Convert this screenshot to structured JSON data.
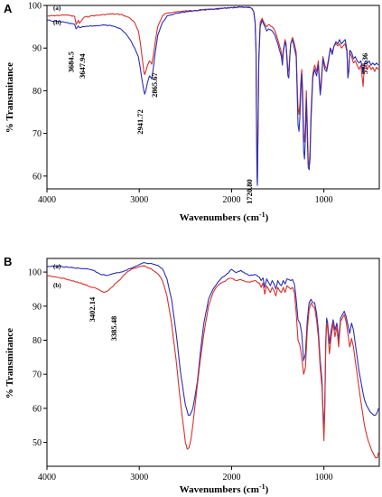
{
  "chart_data": [
    {
      "type": "line",
      "panel": "A",
      "xlabel": "Wavenumbers (cm",
      "xlabel_sup": "-1",
      "xlabel_close": ")",
      "ylabel": "% Transmitance",
      "xlim": [
        4000,
        400
      ],
      "ylim": [
        57,
        100
      ],
      "xticks": [
        4000,
        3000,
        2000,
        1000
      ],
      "yticks": [
        60,
        70,
        80,
        90,
        100
      ],
      "legend_labels": [
        "(a)",
        "(b)"
      ],
      "colors": {
        "a": "#d8312c",
        "b": "#2b2fb8"
      },
      "annotations": [
        {
          "text": "3684.5",
          "x": 3684.5,
          "y": 93
        },
        {
          "text": "3647.94",
          "x": 3647.94,
          "y": 92.5
        },
        {
          "text": "2941.72",
          "x": 2941.72,
          "y": 79
        },
        {
          "text": "2865.67",
          "x": 2865.67,
          "y": 83
        },
        {
          "text": "1720.80",
          "x": 1720.8,
          "y": 58
        },
        {
          "text": "575.36",
          "x": 575.36,
          "y": 85
        }
      ],
      "series": [
        {
          "key": "a",
          "x": [
            4000,
            3900,
            3800,
            3700,
            3684,
            3660,
            3648,
            3600,
            3500,
            3400,
            3300,
            3200,
            3150,
            3100,
            3050,
            3010,
            2990,
            2970,
            2950,
            2942,
            2930,
            2910,
            2890,
            2870,
            2865,
            2850,
            2830,
            2800,
            2750,
            2700,
            2600,
            2500,
            2400,
            2300,
            2200,
            2100,
            2000,
            1900,
            1850,
            1800,
            1780,
            1760,
            1745,
            1735,
            1730,
            1725,
            1721,
            1715,
            1705,
            1690,
            1670,
            1650,
            1620,
            1600,
            1560,
            1530,
            1500,
            1480,
            1460,
            1450,
            1440,
            1420,
            1410,
            1400,
            1390,
            1380,
            1370,
            1360,
            1340,
            1320,
            1300,
            1290,
            1280,
            1270,
            1260,
            1250,
            1240,
            1230,
            1220,
            1210,
            1200,
            1190,
            1180,
            1170,
            1160,
            1150,
            1140,
            1120,
            1100,
            1080,
            1060,
            1050,
            1040,
            1030,
            1010,
            990,
            970,
            950,
            930,
            910,
            890,
            870,
            850,
            830,
            810,
            790,
            770,
            750,
            740,
            730,
            720,
            700,
            680,
            660,
            640,
            620,
            600,
            590,
            580,
            575,
            570,
            560,
            550,
            530,
            510,
            490,
            470,
            450,
            430,
            410
          ],
          "y": [
            97.5,
            97.6,
            97.8,
            97.4,
            95.5,
            96.5,
            95.8,
            97.2,
            97.6,
            97.8,
            98.0,
            97.9,
            97.5,
            97.0,
            96.0,
            94.0,
            91.5,
            88.0,
            84.5,
            83.8,
            84.5,
            86.0,
            87.0,
            86.5,
            86.2,
            88.0,
            91.0,
            95.0,
            97.5,
            98.2,
            98.5,
            98.7,
            98.8,
            99.0,
            99.1,
            99.3,
            99.5,
            99.6,
            99.6,
            99.5,
            99.3,
            98.5,
            96.0,
            90.0,
            75.0,
            62.0,
            58.5,
            70.0,
            88.0,
            96.0,
            97.0,
            96.0,
            95.0,
            95.5,
            95.0,
            94.0,
            92.0,
            90.5,
            89.0,
            87.0,
            89.5,
            92.0,
            91.0,
            88.0,
            85.0,
            84.5,
            88.0,
            91.0,
            92.5,
            91.0,
            89.0,
            82.0,
            76.0,
            74.5,
            77.0,
            82.0,
            85.0,
            80.0,
            70.0,
            68.0,
            72.0,
            80.0,
            72.0,
            63.0,
            62.5,
            66.0,
            75.0,
            84.0,
            86.0,
            84.5,
            87.0,
            83.0,
            80.0,
            82.0,
            88.0,
            86.0,
            85.0,
            87.5,
            90.0,
            89.0,
            90.5,
            91.0,
            90.5,
            91.0,
            90.0,
            90.5,
            91.0,
            89.0,
            83.5,
            85.0,
            89.0,
            88.0,
            86.5,
            87.0,
            86.0,
            85.0,
            86.0,
            84.0,
            82.0,
            81.0,
            83.0,
            85.5,
            86.0,
            85.0,
            86.0,
            85.0,
            85.5,
            84.5,
            85.5,
            85.0
          ]
        },
        {
          "key": "b",
          "x": [
            4000,
            3900,
            3800,
            3700,
            3684,
            3660,
            3648,
            3600,
            3500,
            3400,
            3300,
            3200,
            3150,
            3100,
            3050,
            3010,
            2990,
            2970,
            2950,
            2942,
            2930,
            2910,
            2890,
            2870,
            2865,
            2850,
            2830,
            2800,
            2750,
            2700,
            2600,
            2500,
            2400,
            2300,
            2200,
            2100,
            2000,
            1900,
            1850,
            1800,
            1780,
            1760,
            1745,
            1735,
            1730,
            1725,
            1721,
            1715,
            1705,
            1690,
            1670,
            1650,
            1620,
            1600,
            1560,
            1530,
            1500,
            1480,
            1460,
            1450,
            1440,
            1420,
            1410,
            1400,
            1390,
            1380,
            1370,
            1360,
            1340,
            1320,
            1300,
            1290,
            1280,
            1270,
            1260,
            1250,
            1240,
            1230,
            1220,
            1210,
            1200,
            1190,
            1180,
            1170,
            1160,
            1150,
            1140,
            1120,
            1100,
            1080,
            1060,
            1050,
            1040,
            1030,
            1010,
            990,
            970,
            950,
            930,
            910,
            890,
            870,
            850,
            830,
            810,
            790,
            770,
            750,
            740,
            730,
            720,
            700,
            680,
            660,
            640,
            620,
            600,
            590,
            580,
            575,
            570,
            560,
            550,
            530,
            510,
            490,
            470,
            450,
            430,
            410
          ],
          "y": [
            96.5,
            96.3,
            96.0,
            95.5,
            94.5,
            95.2,
            94.8,
            95.0,
            95.2,
            95.4,
            95.2,
            94.5,
            93.5,
            92.0,
            90.0,
            88.0,
            85.5,
            82.5,
            80.0,
            79.2,
            80.0,
            82.0,
            83.5,
            83.0,
            82.8,
            85.0,
            88.5,
            93.0,
            96.0,
            97.5,
            98.2,
            98.5,
            98.8,
            99.0,
            99.1,
            99.3,
            99.5,
            99.6,
            99.6,
            99.5,
            99.3,
            98.5,
            96.0,
            89.0,
            72.0,
            60.0,
            57.8,
            68.0,
            87.0,
            95.0,
            96.5,
            95.5,
            94.0,
            94.5,
            94.0,
            93.0,
            91.0,
            89.5,
            88.0,
            86.0,
            89.0,
            91.5,
            90.5,
            87.0,
            83.5,
            83.0,
            87.5,
            91.0,
            92.0,
            90.0,
            88.0,
            80.0,
            72.0,
            70.5,
            74.0,
            80.0,
            84.0,
            77.0,
            66.0,
            64.0,
            69.0,
            78.0,
            69.0,
            62.0,
            61.5,
            64.0,
            73.0,
            83.0,
            85.0,
            83.5,
            86.0,
            82.0,
            79.0,
            81.0,
            87.5,
            85.0,
            84.5,
            87.0,
            90.0,
            88.5,
            90.5,
            91.5,
            91.0,
            92.0,
            91.0,
            91.5,
            92.0,
            89.5,
            83.0,
            84.5,
            89.5,
            89.0,
            87.5,
            88.0,
            87.0,
            86.5,
            87.0,
            86.0,
            84.5,
            84.0,
            85.0,
            86.5,
            87.0,
            86.5,
            87.0,
            86.0,
            86.5,
            86.0,
            86.5,
            86.0
          ]
        }
      ]
    },
    {
      "type": "line",
      "panel": "B",
      "xlabel": "Wavenumbers (cm",
      "xlabel_sup": "-1",
      "xlabel_close": ")",
      "ylabel": "% Transmitance",
      "xlim": [
        4000,
        400
      ],
      "ylim": [
        43,
        104
      ],
      "xticks": [
        4000,
        3000,
        2000,
        1000
      ],
      "yticks": [
        50,
        60,
        70,
        80,
        90,
        100
      ],
      "legend_labels": [
        "(a)",
        "(b)"
      ],
      "colors": {
        "a": "#2b2fb8",
        "b": "#d8312c"
      },
      "annotations": [
        {
          "text": "3402.14",
          "x": 3402.14,
          "y": 98.5
        },
        {
          "text": "3385.48",
          "x": 3385.48,
          "y": 94.0
        }
      ],
      "series": [
        {
          "key": "a",
          "x": [
            4000,
            3900,
            3800,
            3700,
            3600,
            3500,
            3450,
            3400,
            3350,
            3300,
            3250,
            3200,
            3150,
            3100,
            3050,
            3000,
            2950,
            2900,
            2850,
            2800,
            2750,
            2700,
            2650,
            2600,
            2550,
            2500,
            2470,
            2450,
            2420,
            2400,
            2370,
            2340,
            2300,
            2250,
            2200,
            2150,
            2100,
            2050,
            2000,
            1950,
            1900,
            1850,
            1800,
            1750,
            1700,
            1680,
            1660,
            1640,
            1620,
            1600,
            1580,
            1560,
            1540,
            1520,
            1500,
            1480,
            1460,
            1440,
            1420,
            1400,
            1380,
            1360,
            1340,
            1320,
            1300,
            1280,
            1260,
            1240,
            1220,
            1200,
            1180,
            1160,
            1140,
            1120,
            1100,
            1080,
            1060,
            1040,
            1020,
            1010,
            1000,
            990,
            980,
            970,
            960,
            940,
            920,
            900,
            880,
            860,
            840,
            820,
            800,
            780,
            760,
            740,
            720,
            700,
            680,
            660,
            640,
            620,
            600,
            580,
            560,
            540,
            520,
            500,
            480,
            460,
            440,
            420,
            410
          ],
          "y": [
            101.5,
            101.8,
            101.5,
            101.2,
            101.0,
            100.5,
            99.8,
            99.2,
            99.0,
            99.4,
            99.8,
            100.0,
            100.5,
            101.0,
            101.5,
            102.2,
            102.8,
            102.5,
            102.3,
            102.0,
            101.0,
            98.0,
            92.0,
            82.0,
            70.0,
            61.0,
            58.0,
            58.0,
            60.0,
            63.0,
            68.0,
            76.0,
            85.0,
            92.0,
            95.0,
            97.0,
            98.5,
            99.5,
            100.8,
            99.8,
            100.5,
            99.5,
            99.0,
            99.3,
            98.5,
            97.5,
            98.3,
            95.5,
            98.0,
            97.0,
            96.0,
            97.5,
            96.5,
            95.0,
            97.5,
            96.5,
            96.0,
            97.5,
            96.5,
            98.0,
            97.8,
            97.5,
            97.8,
            96.5,
            92.0,
            86.0,
            85.0,
            82.0,
            74.0,
            76.0,
            86.0,
            91.0,
            92.0,
            91.0,
            91.0,
            88.0,
            83.0,
            74.0,
            68.0,
            60.0,
            53.0,
            62.0,
            80.0,
            86.5,
            85.0,
            79.0,
            83.0,
            86.0,
            83.0,
            85.0,
            80.0,
            86.5,
            87.5,
            88.5,
            87.0,
            84.5,
            82.0,
            85.0,
            83.0,
            79.0,
            75.0,
            71.0,
            68.0,
            65.0,
            62.5,
            61.0,
            60.0,
            59.0,
            58.5,
            58.0,
            58.0,
            59.0,
            60.0
          ]
        },
        {
          "key": "b",
          "x": [
            4000,
            3900,
            3800,
            3700,
            3600,
            3500,
            3450,
            3400,
            3385,
            3350,
            3300,
            3250,
            3200,
            3150,
            3100,
            3050,
            3000,
            2950,
            2900,
            2850,
            2800,
            2750,
            2700,
            2650,
            2600,
            2550,
            2500,
            2480,
            2460,
            2440,
            2420,
            2400,
            2370,
            2340,
            2300,
            2250,
            2200,
            2150,
            2100,
            2050,
            2000,
            1950,
            1900,
            1850,
            1800,
            1750,
            1700,
            1680,
            1660,
            1640,
            1620,
            1600,
            1580,
            1560,
            1540,
            1520,
            1500,
            1480,
            1460,
            1440,
            1420,
            1400,
            1380,
            1360,
            1340,
            1320,
            1300,
            1280,
            1260,
            1240,
            1220,
            1200,
            1180,
            1160,
            1140,
            1120,
            1100,
            1080,
            1060,
            1040,
            1020,
            1010,
            1000,
            990,
            980,
            970,
            960,
            940,
            920,
            900,
            880,
            860,
            840,
            820,
            800,
            780,
            760,
            740,
            720,
            700,
            680,
            660,
            640,
            620,
            600,
            580,
            560,
            540,
            520,
            500,
            480,
            460,
            440,
            420,
            410
          ],
          "y": [
            99.0,
            98.6,
            98.0,
            97.2,
            96.5,
            95.5,
            95.0,
            94.3,
            94.0,
            94.3,
            95.5,
            96.8,
            98.0,
            99.5,
            100.5,
            101.2,
            101.5,
            101.8,
            101.2,
            100.5,
            99.5,
            97.5,
            93.0,
            85.0,
            74.0,
            61.0,
            50.0,
            48.0,
            48.5,
            51.0,
            55.0,
            60.0,
            67.0,
            74.0,
            82.0,
            90.0,
            94.0,
            96.0,
            97.0,
            97.8,
            98.2,
            97.5,
            97.8,
            97.2,
            97.0,
            97.5,
            96.8,
            95.5,
            96.8,
            93.5,
            96.0,
            95.0,
            94.0,
            95.5,
            94.5,
            93.0,
            95.5,
            94.5,
            94.0,
            95.5,
            94.0,
            96.0,
            95.5,
            95.0,
            95.5,
            94.0,
            88.0,
            80.0,
            78.5,
            75.0,
            70.0,
            72.0,
            83.0,
            89.0,
            91.0,
            90.0,
            89.5,
            86.0,
            81.0,
            72.0,
            66.0,
            58.0,
            50.5,
            60.0,
            78.0,
            85.0,
            83.5,
            76.0,
            81.0,
            85.0,
            81.0,
            84.0,
            78.0,
            85.5,
            86.5,
            87.5,
            85.5,
            82.0,
            78.0,
            80.5,
            78.0,
            74.0,
            70.0,
            66.0,
            62.0,
            58.5,
            55.0,
            52.5,
            50.5,
            49.0,
            47.5,
            46.5,
            45.5,
            45.5,
            47.0
          ]
        }
      ]
    }
  ]
}
